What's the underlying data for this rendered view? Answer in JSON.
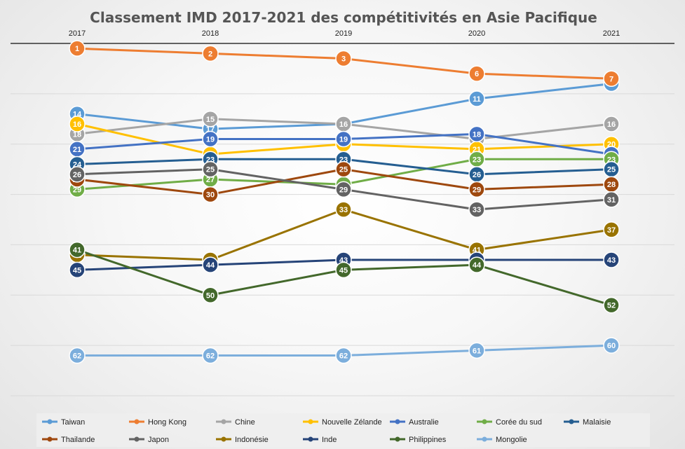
{
  "chart_data": {
    "type": "line",
    "title": "Classement IMD 2017-2021 des compétitivités en Asie Pacifique",
    "x": [
      "2017",
      "2018",
      "2019",
      "2020",
      "2021"
    ],
    "y_axis": {
      "reversed": true,
      "range": [
        0,
        70
      ]
    },
    "x_axis_position": "top",
    "grid": true,
    "legend_position": "bottom",
    "series": [
      {
        "name": "Taiwan",
        "color": "#5b9bd5",
        "values": [
          14,
          17,
          16,
          11,
          8
        ]
      },
      {
        "name": "Hong Kong",
        "color": "#ed7d31",
        "values": [
          1,
          2,
          3,
          6,
          7
        ]
      },
      {
        "name": "Chine",
        "color": "#a5a5a5",
        "values": [
          18,
          15,
          16,
          19,
          16
        ]
      },
      {
        "name": "Nouvelle Zélande",
        "color": "#ffc000",
        "values": [
          16,
          22,
          20,
          21,
          20
        ]
      },
      {
        "name": "Australie",
        "color": "#4472c4",
        "values": [
          21,
          19,
          19,
          18,
          22
        ]
      },
      {
        "name": "Corée du sud",
        "color": "#70ad47",
        "values": [
          29,
          27,
          28,
          23,
          23
        ]
      },
      {
        "name": "Malaisie",
        "color": "#255e91",
        "values": [
          24,
          23,
          23,
          26,
          25
        ]
      },
      {
        "name": "Thailande",
        "color": "#9e480e",
        "values": [
          27,
          30,
          25,
          29,
          28
        ]
      },
      {
        "name": "Japon",
        "color": "#636363",
        "values": [
          26,
          25,
          29,
          33,
          31
        ]
      },
      {
        "name": "Indonésie",
        "color": "#997300",
        "values": [
          42,
          43,
          33,
          41,
          37
        ]
      },
      {
        "name": "Inde",
        "color": "#264478",
        "values": [
          45,
          44,
          43,
          43,
          43
        ]
      },
      {
        "name": "Philippines",
        "color": "#43682b",
        "values": [
          41,
          50,
          45,
          44,
          52
        ]
      },
      {
        "name": "Mongolie",
        "color": "#7caedc",
        "values": [
          62,
          62,
          62,
          61,
          60
        ]
      }
    ]
  }
}
